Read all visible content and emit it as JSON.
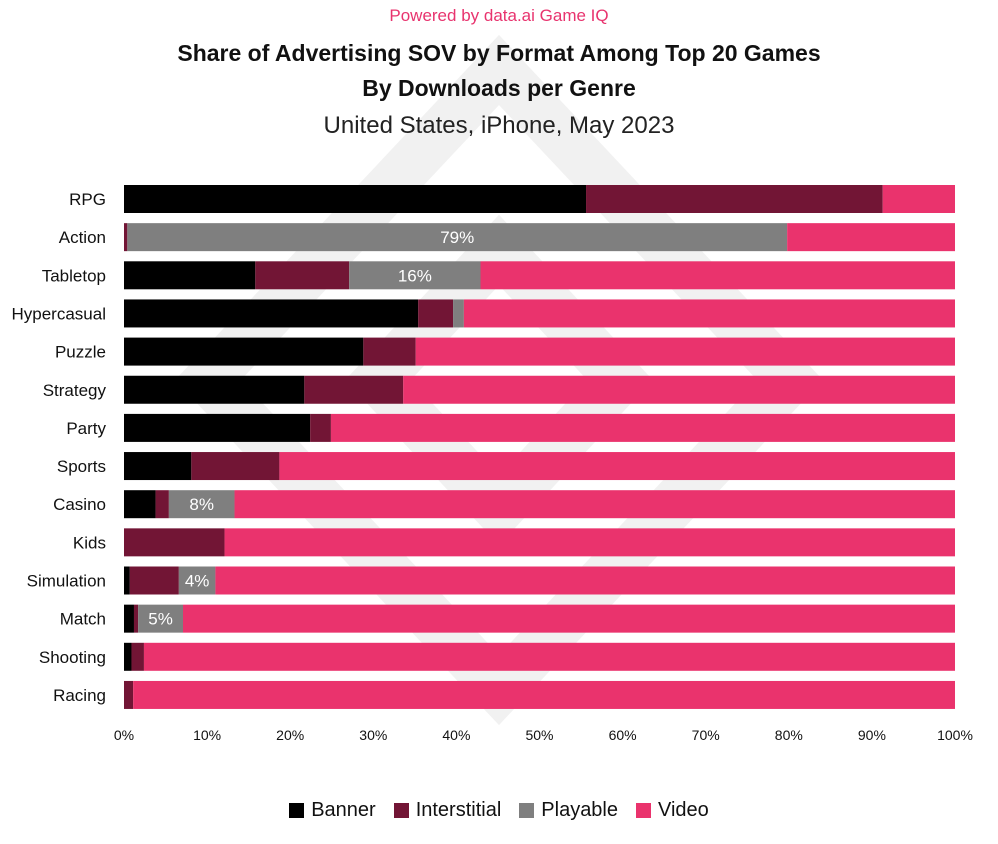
{
  "header": {
    "powered_by": "Powered by data.ai Game IQ",
    "title_line1": "Share of Advertising SOV by Format Among Top 20 Games",
    "title_line2": "By Downloads per Genre",
    "subtitle": "United States, iPhone, May 2023"
  },
  "colors": {
    "Banner": "#000000",
    "Interstitial": "#721535",
    "Playable": "#7f7f7f",
    "Video": "#ea336d",
    "accent": "#e8336e"
  },
  "chart_data": {
    "type": "bar",
    "orientation": "horizontal",
    "stacked": true,
    "categories": [
      "RPG",
      "Action",
      "Tabletop",
      "Hypercasual",
      "Puzzle",
      "Strategy",
      "Party",
      "Sports",
      "Casino",
      "Kids",
      "Simulation",
      "Match",
      "Shooting",
      "Racing"
    ],
    "series": [
      {
        "name": "Banner",
        "values": [
          55.6,
          0.0,
          15.8,
          35.4,
          28.8,
          21.7,
          22.4,
          8.1,
          3.8,
          0.0,
          0.7,
          1.2,
          0.9,
          0.0
        ]
      },
      {
        "name": "Interstitial",
        "values": [
          35.7,
          0.4,
          11.3,
          4.2,
          6.3,
          11.9,
          2.5,
          10.6,
          1.6,
          12.1,
          5.9,
          0.5,
          1.5,
          1.1
        ]
      },
      {
        "name": "Playable",
        "values": [
          0.0,
          79.4,
          15.8,
          1.3,
          0.0,
          0.0,
          0.0,
          0.0,
          7.9,
          0.0,
          4.4,
          5.4,
          0.0,
          0.0
        ]
      },
      {
        "name": "Video",
        "values": [
          8.7,
          20.2,
          57.1,
          59.1,
          64.9,
          66.4,
          75.1,
          81.3,
          86.7,
          87.9,
          89.0,
          92.9,
          97.6,
          98.9
        ]
      }
    ],
    "data_labels": [
      {
        "category": "Action",
        "series": "Playable",
        "text": "79%"
      },
      {
        "category": "Tabletop",
        "series": "Playable",
        "text": "16%"
      },
      {
        "category": "Casino",
        "series": "Playable",
        "text": "8%"
      },
      {
        "category": "Simulation",
        "series": "Playable",
        "text": "4%"
      },
      {
        "category": "Match",
        "series": "Playable",
        "text": "5%"
      }
    ],
    "xlim": [
      0,
      100
    ],
    "xticks": [
      "0%",
      "10%",
      "20%",
      "30%",
      "40%",
      "50%",
      "60%",
      "70%",
      "80%",
      "90%",
      "100%"
    ],
    "grid": false,
    "legend_position": "bottom"
  }
}
